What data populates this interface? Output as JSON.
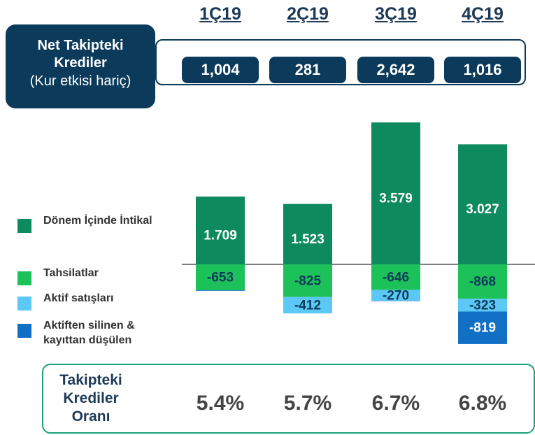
{
  "chart_data": {
    "type": "bar",
    "stacked": true,
    "categories": [
      "1Ç19",
      "2Ç19",
      "3Ç19",
      "4Ç19"
    ],
    "net_label": "Net Takipteki Krediler",
    "net_note": "(Kur etkisi hariç)",
    "net_values": [
      1004,
      281,
      2642,
      1016
    ],
    "net_value_labels": [
      "1,004",
      "281",
      "2,642",
      "1,016"
    ],
    "ratio_label": "Takipteki Krediler Oranı",
    "ratio_values": [
      5.4,
      5.7,
      6.7,
      6.8
    ],
    "ratio_value_labels": [
      "5.4%",
      "5.7%",
      "6.7%",
      "6.8%"
    ],
    "ylim": [
      -2200,
      3700
    ],
    "series": [
      {
        "name": "Dönem İçinde İntikal",
        "color": "#0e8a5f",
        "label_color": "#ffffff",
        "values": [
          1709,
          1523,
          3579,
          3027
        ],
        "value_labels": [
          "1.709",
          "1.523",
          "3.579",
          "3.027"
        ]
      },
      {
        "name": "Tahsilatlar",
        "color": "#1dc15a",
        "label_color": "#0b3a5a",
        "values": [
          -653,
          -825,
          -646,
          -868
        ],
        "value_labels": [
          "-653",
          "-825",
          "-646",
          "-868"
        ]
      },
      {
        "name": "Aktif satışları",
        "color": "#5bc8f5",
        "label_color": "#0b3a5a",
        "values": [
          0,
          -412,
          -270,
          -323
        ],
        "value_labels": [
          null,
          "-412",
          "-270",
          "-323"
        ]
      },
      {
        "name": "Aktiften silinen & kayıttan düşülen",
        "color": "#1170c4",
        "label_color": "#ffffff",
        "values": [
          -15,
          0,
          -10,
          -819
        ],
        "value_labels": [
          null,
          null,
          null,
          "-819"
        ]
      }
    ]
  }
}
